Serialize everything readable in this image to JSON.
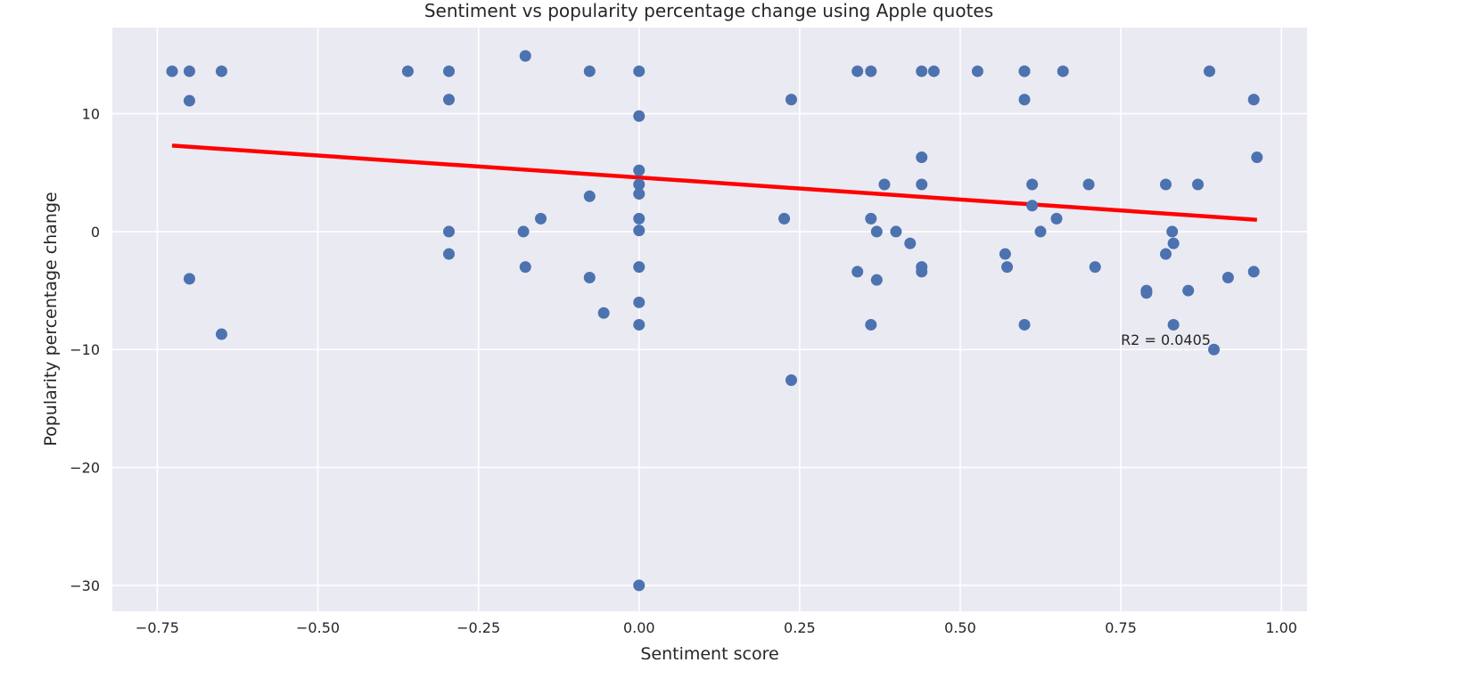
{
  "chart_data": {
    "type": "scatter",
    "title": "Sentiment vs popularity percentage change using Apple quotes",
    "xlabel": "Sentiment score",
    "ylabel": "Popularity percentage change",
    "xlim": [
      -0.82,
      1.04
    ],
    "ylim": [
      -32.2,
      17.3
    ],
    "x_ticks": [
      -0.75,
      -0.5,
      -0.25,
      0.0,
      0.25,
      0.5,
      0.75,
      1.0
    ],
    "x_tick_labels": [
      "−0.75",
      "−0.50",
      "−0.25",
      "0.00",
      "0.25",
      "0.50",
      "0.75",
      "1.00"
    ],
    "y_ticks": [
      10,
      0,
      -10,
      -20,
      -30
    ],
    "y_tick_labels": [
      "10",
      "0",
      "−10",
      "−20",
      "−30"
    ],
    "grid": true,
    "legend": "none",
    "colors": {
      "background": "#eaeaf2",
      "grid": "#ffffff",
      "points": "#4c72b0",
      "fit_line": "#ff0000"
    },
    "fit_line": {
      "x": [
        -0.727,
        0.962
      ],
      "y": [
        7.3,
        1.0
      ]
    },
    "annotation": {
      "text": "R2 = 0.0405",
      "x": 0.75,
      "y": -9.6
    },
    "points": [
      [
        -0.727,
        13.6
      ],
      [
        -0.7,
        13.6
      ],
      [
        -0.7,
        11.1
      ],
      [
        -0.7,
        -4.0
      ],
      [
        -0.65,
        13.6
      ],
      [
        -0.65,
        -8.7
      ],
      [
        -0.36,
        13.6
      ],
      [
        -0.296,
        13.6
      ],
      [
        -0.296,
        11.2
      ],
      [
        -0.296,
        0.0
      ],
      [
        -0.296,
        -1.9
      ],
      [
        -0.177,
        14.9
      ],
      [
        -0.18,
        0.0
      ],
      [
        -0.177,
        -3.0
      ],
      [
        -0.153,
        1.1
      ],
      [
        -0.077,
        13.6
      ],
      [
        -0.077,
        3.0
      ],
      [
        -0.077,
        -3.9
      ],
      [
        -0.055,
        -6.9
      ],
      [
        0.0,
        13.6
      ],
      [
        0.0,
        9.8
      ],
      [
        0.0,
        5.2
      ],
      [
        0.0,
        4.0
      ],
      [
        0.0,
        3.2
      ],
      [
        0.0,
        1.1
      ],
      [
        0.0,
        0.1
      ],
      [
        0.0,
        -3.0
      ],
      [
        0.0,
        -6.0
      ],
      [
        0.0,
        -7.9
      ],
      [
        0.0,
        -30.0
      ],
      [
        0.226,
        1.1
      ],
      [
        0.237,
        11.2
      ],
      [
        0.237,
        -12.6
      ],
      [
        0.34,
        13.6
      ],
      [
        0.34,
        -3.4
      ],
      [
        0.361,
        13.6
      ],
      [
        0.361,
        1.1
      ],
      [
        0.361,
        -7.9
      ],
      [
        0.37,
        0.0
      ],
      [
        0.37,
        -4.1
      ],
      [
        0.382,
        4.0
      ],
      [
        0.4,
        0.0
      ],
      [
        0.422,
        -1.0
      ],
      [
        0.44,
        13.6
      ],
      [
        0.44,
        6.3
      ],
      [
        0.44,
        4.0
      ],
      [
        0.44,
        -3.0
      ],
      [
        0.44,
        -3.4
      ],
      [
        0.459,
        13.6
      ],
      [
        0.527,
        13.6
      ],
      [
        0.57,
        -1.9
      ],
      [
        0.573,
        -3.0
      ],
      [
        0.6,
        13.6
      ],
      [
        0.6,
        13.6
      ],
      [
        0.6,
        11.2
      ],
      [
        0.6,
        -7.9
      ],
      [
        0.612,
        4.0
      ],
      [
        0.612,
        2.2
      ],
      [
        0.625,
        0.0
      ],
      [
        0.65,
        1.1
      ],
      [
        0.66,
        13.6
      ],
      [
        0.7,
        4.0
      ],
      [
        0.71,
        -3.0
      ],
      [
        0.79,
        -5.0
      ],
      [
        0.79,
        -5.2
      ],
      [
        0.82,
        4.0
      ],
      [
        0.82,
        -1.9
      ],
      [
        0.83,
        0.0
      ],
      [
        0.832,
        -1.0
      ],
      [
        0.832,
        -7.9
      ],
      [
        0.855,
        -5.0
      ],
      [
        0.87,
        4.0
      ],
      [
        0.888,
        13.6
      ],
      [
        0.895,
        -10.0
      ],
      [
        0.917,
        -3.9
      ],
      [
        0.957,
        11.2
      ],
      [
        0.957,
        -3.4
      ],
      [
        0.962,
        6.3
      ]
    ]
  }
}
